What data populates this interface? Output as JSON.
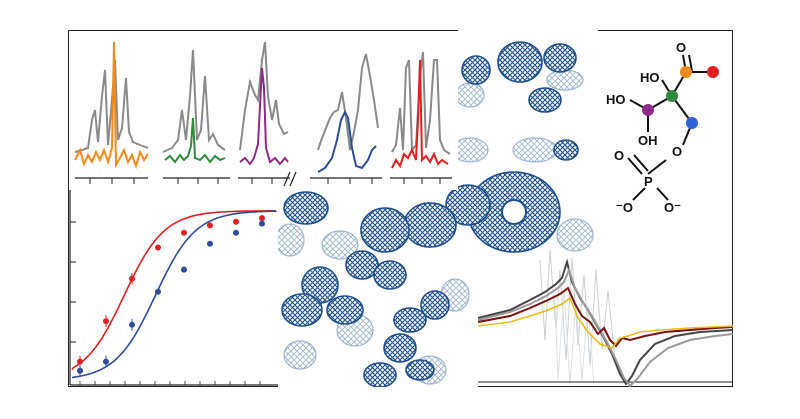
{
  "molecule": {
    "labels": [
      "O",
      "HO",
      "HO",
      "OH",
      "O",
      "O",
      "P",
      "⁻O",
      "O⁻"
    ]
  },
  "colors": {
    "reference_trace": "#8a8a8a",
    "orange": "#f08a1c",
    "green": "#2e8b3a",
    "purple": "#8e2a8a",
    "blue": "#2e4b9c",
    "red": "#e02020",
    "density_dark": "#1d4f8c",
    "density_light": "#9fb6d0",
    "dark_red": "#7a1010",
    "yellow": "#f0b81c",
    "dark_gray": "#444444"
  },
  "spectra_panels": [
    {
      "name": "orange-overlay",
      "color": "orange"
    },
    {
      "name": "green-overlay",
      "color": "green"
    },
    {
      "name": "purple-overlay",
      "color": "purple"
    },
    {
      "name": "blue-overlay",
      "color": "blue"
    },
    {
      "name": "red-overlay",
      "color": "red"
    }
  ],
  "binding_curve": {
    "series": [
      {
        "color": "red",
        "points": [
          [
            1,
            0.1
          ],
          [
            2,
            0.32
          ],
          [
            3,
            0.55
          ],
          [
            4,
            0.72
          ],
          [
            5,
            0.8
          ],
          [
            6,
            0.84
          ],
          [
            7,
            0.86
          ],
          [
            8,
            0.88
          ]
        ]
      },
      {
        "color": "blue",
        "points": [
          [
            1,
            0.05
          ],
          [
            2,
            0.1
          ],
          [
            3,
            0.3
          ],
          [
            4,
            0.48
          ],
          [
            5,
            0.6
          ],
          [
            6,
            0.74
          ],
          [
            7,
            0.8
          ],
          [
            8,
            0.85
          ]
        ]
      }
    ]
  }
}
